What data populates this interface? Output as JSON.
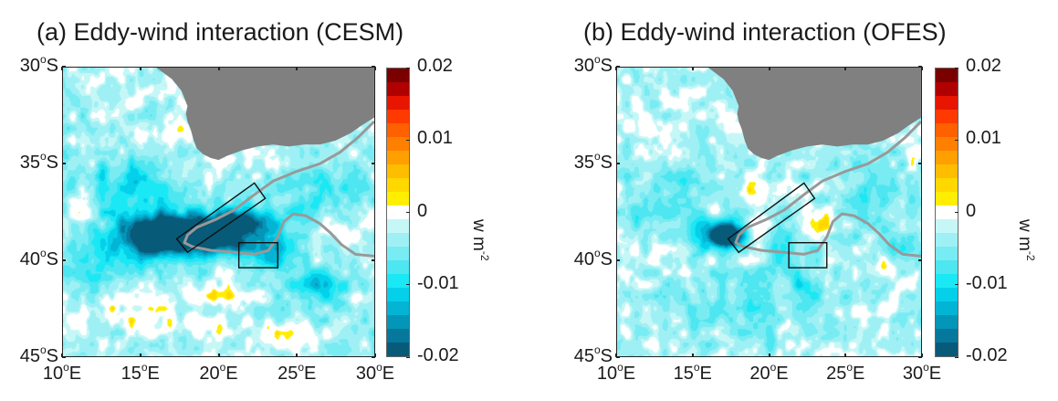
{
  "figure": {
    "panels": [
      {
        "id": "a",
        "title": "(a) Eddy-wind interaction (CESM)"
      },
      {
        "id": "b",
        "title": "(b) Eddy-wind interaction (OFES)"
      }
    ]
  },
  "chart_data": [
    {
      "type": "heatmap",
      "title": "(a) Eddy-wind interaction (CESM)",
      "xlabel": "",
      "ylabel": "",
      "xlim": [
        10,
        30
      ],
      "ylim": [
        -45,
        -30
      ],
      "x_ticks": [
        {
          "value": 10,
          "label": "10",
          "suffix": "E"
        },
        {
          "value": 15,
          "label": "15",
          "suffix": "E"
        },
        {
          "value": 20,
          "label": "20",
          "suffix": "E"
        },
        {
          "value": 25,
          "label": "25",
          "suffix": "E"
        },
        {
          "value": 30,
          "label": "30",
          "suffix": "E"
        }
      ],
      "y_ticks": [
        {
          "value": -30,
          "label": "30",
          "suffix": "S"
        },
        {
          "value": -35,
          "label": "35",
          "suffix": "S"
        },
        {
          "value": -40,
          "label": "40",
          "suffix": "S"
        },
        {
          "value": -45,
          "label": "45",
          "suffix": "S"
        }
      ],
      "colorbar": {
        "range": [
          -0.02,
          0.02
        ],
        "ticks": [
          "0.02",
          "0.01",
          "0",
          "-0.01",
          "-0.02"
        ],
        "unit_base": "w m",
        "unit_exp": "-2"
      },
      "features": [
        {
          "lon": 17.2,
          "lat": -38.6,
          "value": -0.02,
          "rx": 2.2,
          "ry": 1.0
        },
        {
          "lon": 19.5,
          "lat": -38.7,
          "value": -0.02,
          "rx": 3.0,
          "ry": 0.9
        },
        {
          "lon": 21.5,
          "lat": -37.9,
          "value": -0.016,
          "rx": 1.8,
          "ry": 0.7
        },
        {
          "lon": 15.0,
          "lat": -38.8,
          "value": -0.013,
          "rx": 2.0,
          "ry": 1.2
        },
        {
          "lon": 14.0,
          "lat": -36.2,
          "value": -0.008,
          "rx": 3.0,
          "ry": 1.5
        },
        {
          "lon": 23.5,
          "lat": -39.6,
          "value": -0.009,
          "rx": 2.0,
          "ry": 1.0
        },
        {
          "lon": 26.0,
          "lat": -36.3,
          "value": -0.008,
          "rx": 2.5,
          "ry": 1.3
        },
        {
          "lon": 12.0,
          "lat": -40.0,
          "value": -0.007,
          "rx": 2.0,
          "ry": 1.5
        },
        {
          "lon": 26.5,
          "lat": -41.5,
          "value": -0.007,
          "rx": 2.5,
          "ry": 1.2
        },
        {
          "lon": 14.0,
          "lat": -42.5,
          "value": 0.004,
          "rx": 4.0,
          "ry": 0.7
        },
        {
          "lon": 20.0,
          "lat": -41.8,
          "value": 0.004,
          "rx": 3.0,
          "ry": 0.5
        },
        {
          "lon": 18.5,
          "lat": -43.5,
          "value": 0.003,
          "rx": 3.0,
          "ry": 0.6
        },
        {
          "lon": 24.5,
          "lat": -43.8,
          "value": 0.004,
          "rx": 3.0,
          "ry": 0.6
        },
        {
          "lon": 11.2,
          "lat": -37.5,
          "value": 0.004,
          "rx": 0.6,
          "ry": 1.0
        },
        {
          "lon": 25.7,
          "lat": -36.5,
          "value": 0.004,
          "rx": 1.5,
          "ry": 0.6
        },
        {
          "lon": 19.8,
          "lat": -34.8,
          "value": 0.004,
          "rx": 1.3,
          "ry": 0.4
        },
        {
          "lon": 17.0,
          "lat": -33.5,
          "value": 0.004,
          "rx": 0.8,
          "ry": 0.6
        },
        {
          "lon": 27.5,
          "lat": -38.6,
          "value": 0.004,
          "rx": 1.2,
          "ry": 0.5
        },
        {
          "lon": 22.5,
          "lat": -40.8,
          "value": 0.003,
          "rx": 1.0,
          "ry": 0.4
        },
        {
          "lon": 28.5,
          "lat": -42.0,
          "value": 0.003,
          "rx": 1.0,
          "ry": 0.5
        }
      ],
      "annotations": [
        {
          "type": "land",
          "label": "Africa (land mask)",
          "color": "#808080"
        },
        {
          "type": "rotated-box",
          "corners": [
            [
              17.3,
              -38.9
            ],
            [
              18.0,
              -39.6
            ],
            [
              23.0,
              -36.8
            ],
            [
              22.3,
              -36.0
            ]
          ]
        },
        {
          "type": "box",
          "lon": [
            21.3,
            23.8
          ],
          "lat": [
            -40.4,
            -39.1
          ]
        },
        {
          "type": "contour",
          "color": "#999999"
        }
      ]
    },
    {
      "type": "heatmap",
      "title": "(b) Eddy-wind interaction (OFES)",
      "xlabel": "",
      "ylabel": "",
      "xlim": [
        10,
        30
      ],
      "ylim": [
        -45,
        -30
      ],
      "x_ticks": [
        {
          "value": 10,
          "label": "10",
          "suffix": "E"
        },
        {
          "value": 15,
          "label": "15",
          "suffix": "E"
        },
        {
          "value": 20,
          "label": "20",
          "suffix": "E"
        },
        {
          "value": 25,
          "label": "25",
          "suffix": "E"
        },
        {
          "value": 30,
          "label": "30",
          "suffix": "E"
        }
      ],
      "y_ticks": [
        {
          "value": -30,
          "label": "30",
          "suffix": "S"
        },
        {
          "value": -35,
          "label": "35",
          "suffix": "S"
        },
        {
          "value": -40,
          "label": "40",
          "suffix": "S"
        },
        {
          "value": -45,
          "label": "45",
          "suffix": "S"
        }
      ],
      "colorbar": {
        "range": [
          -0.02,
          0.02
        ],
        "ticks": [
          "0.02",
          "0.01",
          "0",
          "-0.01",
          "-0.02"
        ],
        "unit_base": "w m",
        "unit_exp": "-2"
      },
      "features": [
        {
          "lon": 17.2,
          "lat": -38.7,
          "value": -0.02,
          "rx": 0.9,
          "ry": 0.55
        },
        {
          "lon": 16.5,
          "lat": -38.7,
          "value": -0.01,
          "rx": 1.8,
          "ry": 0.9
        },
        {
          "lon": 14.0,
          "lat": -36.5,
          "value": -0.004,
          "rx": 3.5,
          "ry": 2.0
        },
        {
          "lon": 21.0,
          "lat": -39.5,
          "value": -0.005,
          "rx": 3.0,
          "ry": 1.5
        },
        {
          "lon": 26.0,
          "lat": -37.0,
          "value": -0.004,
          "rx": 3.5,
          "ry": 2.5
        },
        {
          "lon": 18.0,
          "lat": -42.5,
          "value": -0.004,
          "rx": 5.0,
          "ry": 2.0
        },
        {
          "lon": 22.5,
          "lat": -41.5,
          "value": -0.006,
          "rx": 1.0,
          "ry": 0.7
        },
        {
          "lon": 29.0,
          "lat": -39.5,
          "value": -0.006,
          "rx": 1.0,
          "ry": 0.8
        },
        {
          "lon": 23.6,
          "lat": -38.2,
          "value": 0.008,
          "rx": 1.4,
          "ry": 1.1
        },
        {
          "lon": 19.3,
          "lat": -38.6,
          "value": 0.007,
          "rx": 0.7,
          "ry": 1.0
        },
        {
          "lon": 18.6,
          "lat": -36.3,
          "value": 0.005,
          "rx": 0.8,
          "ry": 0.5
        },
        {
          "lon": 16.5,
          "lat": -37.4,
          "value": 0.004,
          "rx": 0.6,
          "ry": 0.4
        },
        {
          "lon": 15.8,
          "lat": -40.0,
          "value": 0.004,
          "rx": 0.5,
          "ry": 0.4
        },
        {
          "lon": 18.8,
          "lat": -40.0,
          "value": 0.005,
          "rx": 0.9,
          "ry": 0.4
        },
        {
          "lon": 22.7,
          "lat": -36.3,
          "value": 0.004,
          "rx": 0.8,
          "ry": 0.4
        },
        {
          "lon": 25.0,
          "lat": -36.2,
          "value": 0.004,
          "rx": 0.8,
          "ry": 0.4
        },
        {
          "lon": 27.5,
          "lat": -40.3,
          "value": 0.004,
          "rx": 0.8,
          "ry": 0.5
        },
        {
          "lon": 29.5,
          "lat": -35.0,
          "value": 0.004,
          "rx": 0.5,
          "ry": 0.8
        },
        {
          "lon": 14.8,
          "lat": -41.3,
          "value": 0.004,
          "rx": 0.8,
          "ry": 0.3
        },
        {
          "lon": 21.0,
          "lat": -43.5,
          "value": 0.003,
          "rx": 0.7,
          "ry": 0.4
        },
        {
          "lon": 24.8,
          "lat": -42.8,
          "value": 0.003,
          "rx": 0.8,
          "ry": 0.4
        }
      ],
      "annotations": [
        {
          "type": "land",
          "label": "Africa (land mask)",
          "color": "#808080"
        },
        {
          "type": "rotated-box",
          "corners": [
            [
              17.3,
              -38.9
            ],
            [
              18.0,
              -39.6
            ],
            [
              23.0,
              -36.8
            ],
            [
              22.3,
              -36.0
            ]
          ]
        },
        {
          "type": "box",
          "lon": [
            21.3,
            23.8
          ],
          "lat": [
            -40.4,
            -39.1
          ]
        },
        {
          "type": "contour",
          "color": "#999999"
        }
      ]
    }
  ],
  "colormap": {
    "levels_top_to_bottom": [
      "#7a0000",
      "#b00000",
      "#e81500",
      "#ff3a00",
      "#ff6000",
      "#ff8000",
      "#ffa000",
      "#ffbd00",
      "#ffd800",
      "#ffee00",
      "#ffffff",
      "#c6f7f7",
      "#9ff0f4",
      "#78ecf2",
      "#4ee6f0",
      "#1ae8f5",
      "#05d0ea",
      "#04b4d4",
      "#0496b8",
      "#06789c",
      "#075a78"
    ]
  }
}
